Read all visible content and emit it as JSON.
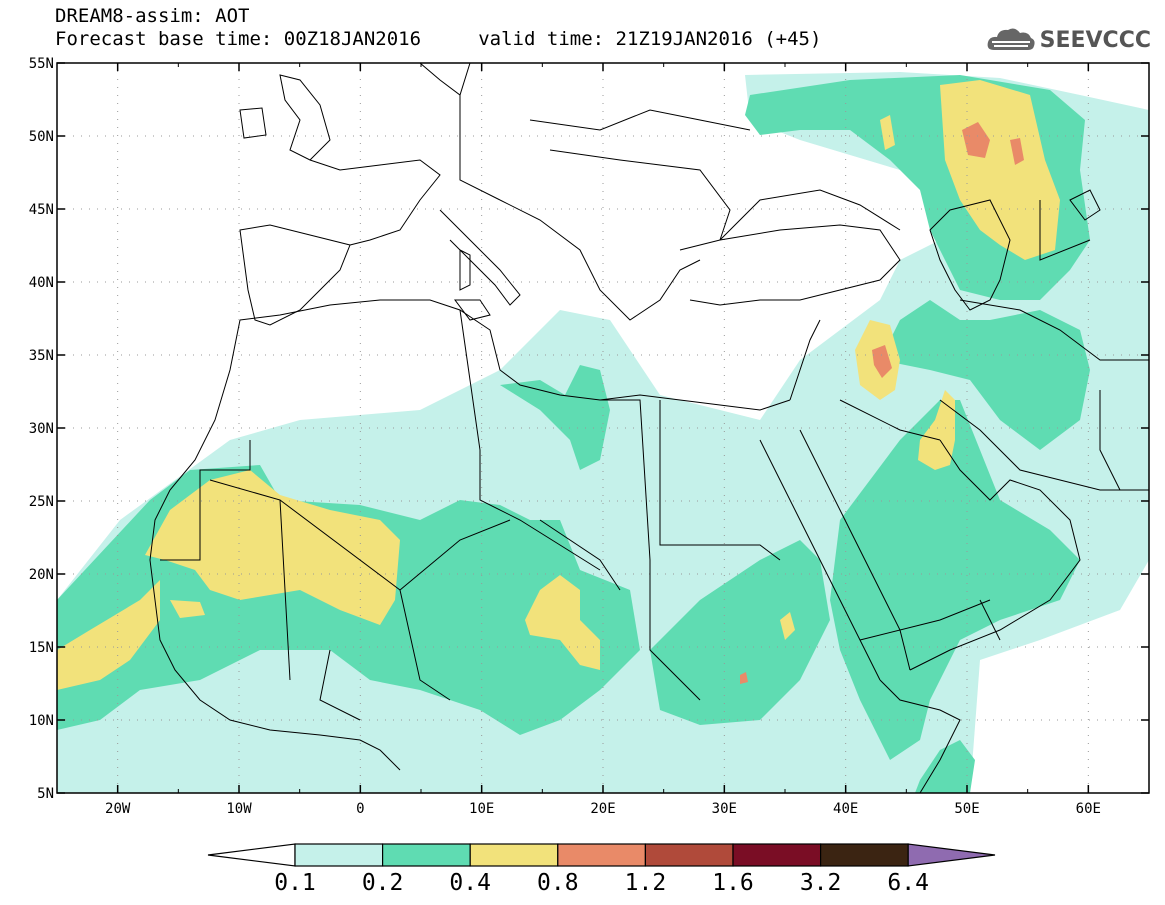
{
  "header": {
    "title_line1": "DREAM8-assim: AOT",
    "title_line2": "Forecast base time: 00Z18JAN2016     valid time: 21Z19JAN2016 (+45)"
  },
  "brand": {
    "name": "SEEVCCC",
    "icon": "cloud-icon"
  },
  "map": {
    "lon_range": [
      -25,
      65
    ],
    "lat_range": [
      5,
      55
    ],
    "lon_ticks": [
      "20W",
      "10W",
      "0",
      "10E",
      "20E",
      "30E",
      "40E",
      "50E",
      "60E"
    ],
    "lat_ticks": [
      "5N",
      "10N",
      "15N",
      "20N",
      "25N",
      "30N",
      "35N",
      "40N",
      "45N",
      "50N",
      "55N"
    ]
  },
  "colorbar": {
    "labels": [
      "0.1",
      "0.2",
      "0.4",
      "0.8",
      "1.2",
      "1.6",
      "3.2",
      "6.4"
    ],
    "colors": [
      "#c5f1ea",
      "#5fdcb2",
      "#f2e27b",
      "#e98a68",
      "#b04a3a",
      "#7a0d25",
      "#3b2412"
    ],
    "under_color": "#ffffff",
    "over_color": "#8f6bb0"
  },
  "levels": {
    "l1": "#c5f1ea",
    "l2": "#5fdcb2",
    "l3": "#f2e27b",
    "l4": "#e98a68"
  }
}
